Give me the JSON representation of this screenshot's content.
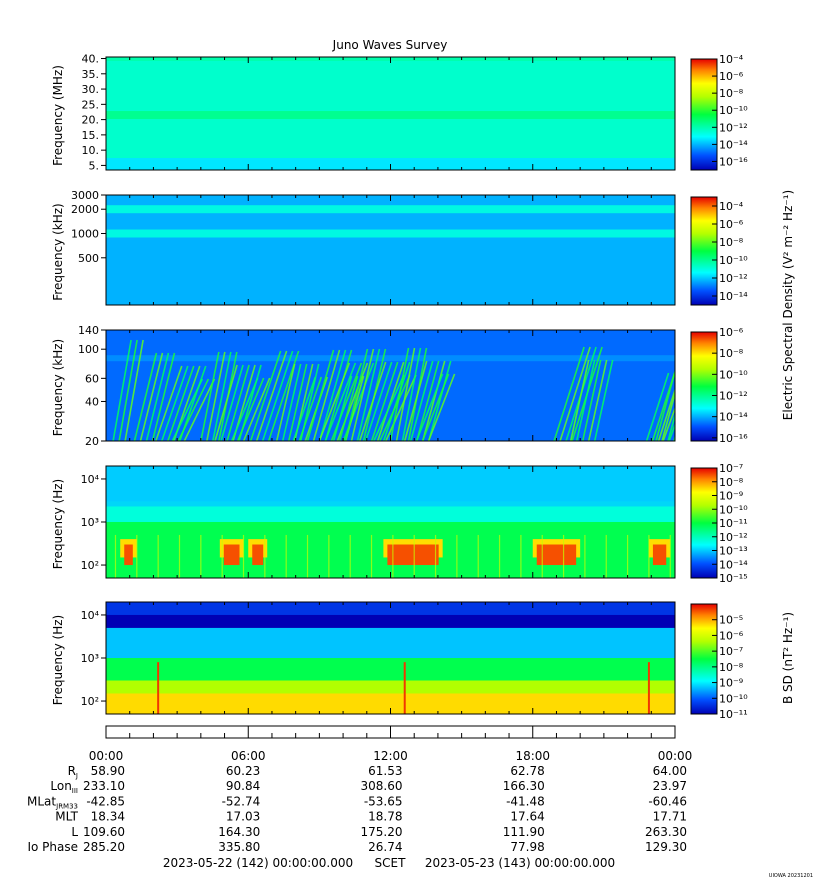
{
  "title": "Juno Waves Survey",
  "colorbar_labels": {
    "electric": "Electric Spectral Density (V² m⁻² Hz⁻¹)",
    "magnetic": "B SD (nT² Hz⁻¹)"
  },
  "x_axis": {
    "tick_labels": [
      "00:00",
      "06:00",
      "12:00",
      "18:00",
      "00:00"
    ]
  },
  "ephemeris": [
    {
      "label": "R",
      "sub": "J",
      "values": [
        "58.90",
        "60.23",
        "61.53",
        "62.78",
        "64.00"
      ]
    },
    {
      "label": "Lon",
      "sub": "III",
      "values": [
        "233.10",
        "90.84",
        "308.60",
        "166.30",
        "23.97"
      ]
    },
    {
      "label": "MLat",
      "sub": "JRM33",
      "values": [
        "-42.85",
        "-52.74",
        "-53.65",
        "-41.48",
        "-60.46"
      ]
    },
    {
      "label": "MLT",
      "sub": "",
      "values": [
        "18.34",
        "17.03",
        "18.78",
        "17.64",
        "17.71"
      ]
    },
    {
      "label": "L",
      "sub": "",
      "values": [
        "109.60",
        "164.30",
        "175.20",
        "111.90",
        "263.30"
      ]
    },
    {
      "label": "Io Phase",
      "sub": "",
      "values": [
        "285.20",
        "335.80",
        "26.74",
        "77.98",
        "129.30"
      ]
    }
  ],
  "footer": {
    "start": "2023-05-22 (142) 00:00:00.000",
    "scet": "SCET",
    "end": "2023-05-23 (143) 00:00:00.000",
    "stamp": "UIOWA 20231201"
  },
  "chart_data": [
    {
      "type": "heatmap",
      "ylabel": "Frequency (MHz)",
      "y_scale": "linear",
      "ylim": [
        3.5,
        40.5
      ],
      "y_ticks": [
        5,
        10,
        15,
        20,
        25,
        30,
        35,
        40
      ],
      "y_tick_labels": [
        "5.",
        "10.",
        "15.",
        "20.",
        "25.",
        "30.",
        "35.",
        "40."
      ],
      "xlim_hours": [
        0,
        24
      ],
      "colorbar": {
        "exponents": [
          -4,
          -6,
          -8,
          -10,
          -12,
          -14,
          -16
        ],
        "range": [
          -17,
          -4
        ]
      },
      "bands": [
        {
          "center": 21.5,
          "level": -11.5
        }
      ]
    },
    {
      "type": "heatmap",
      "ylabel": "Frequency (kHz)",
      "y_scale": "log",
      "ylim": [
        130,
        3000
      ],
      "y_ticks": [
        500,
        1000,
        2000,
        3000
      ],
      "y_tick_labels": [
        "500",
        "1000",
        "2000",
        "3000"
      ],
      "xlim_hours": [
        0,
        24
      ],
      "colorbar": {
        "exponents": [
          -4,
          -6,
          -8,
          -10,
          -12,
          -14
        ],
        "range": [
          -15,
          -3
        ]
      },
      "bands": [
        {
          "center": 2000,
          "level": -11
        },
        {
          "center": 1000,
          "level": -11
        }
      ]
    },
    {
      "type": "heatmap",
      "ylabel": "Frequency (kHz)",
      "y_scale": "log",
      "ylim": [
        20,
        140
      ],
      "y_ticks": [
        20,
        40,
        60,
        100,
        140
      ],
      "y_tick_labels": [
        "20",
        "40",
        "60",
        "100",
        "140"
      ],
      "xlim_hours": [
        0,
        24
      ],
      "colorbar": {
        "exponents": [
          -6,
          -8,
          -10,
          -12,
          -14,
          -16
        ],
        "range": [
          -16.3,
          -6
        ]
      },
      "bursts_hours": [
        0.3,
        1.2,
        2.1,
        2.8,
        4.0,
        4.6,
        5.3,
        6.1,
        7.2,
        7.9,
        8.5,
        9.0,
        9.6,
        10.1,
        10.7,
        11.3,
        12.0,
        12.6,
        13.1,
        18.9,
        19.6,
        22.8,
        23.2,
        23.5
      ]
    },
    {
      "type": "heatmap",
      "ylabel": "Frequency (Hz)",
      "y_scale": "log",
      "ylim": [
        50,
        20000
      ],
      "y_ticks": [
        100,
        1000,
        10000
      ],
      "y_tick_labels": [
        "10²",
        "10³",
        "10⁴"
      ],
      "xlim_hours": [
        0,
        24
      ],
      "colorbar": {
        "exponents": [
          -7,
          -8,
          -9,
          -10,
          -11,
          -12,
          -13,
          -14,
          -15
        ],
        "range": [
          -15,
          -7
        ]
      },
      "intense_hours": [
        [
          0.6,
          1.3
        ],
        [
          4.8,
          5.8
        ],
        [
          6.0,
          6.8
        ],
        [
          11.7,
          14.2
        ],
        [
          18.0,
          20.0
        ],
        [
          22.9,
          23.8
        ]
      ]
    },
    {
      "type": "heatmap",
      "ylabel": "Frequency (Hz)",
      "y_scale": "log",
      "ylim": [
        50,
        20000
      ],
      "y_ticks": [
        100,
        1000,
        10000
      ],
      "y_tick_labels": [
        "10²",
        "10³",
        "10⁴"
      ],
      "xlim_hours": [
        0,
        24
      ],
      "colorbar": {
        "exponents": [
          -5,
          -6,
          -7,
          -8,
          -9,
          -10,
          -11
        ],
        "range": [
          -11,
          -4
        ]
      },
      "spike_hours": [
        2.2,
        12.6,
        22.9
      ]
    }
  ]
}
